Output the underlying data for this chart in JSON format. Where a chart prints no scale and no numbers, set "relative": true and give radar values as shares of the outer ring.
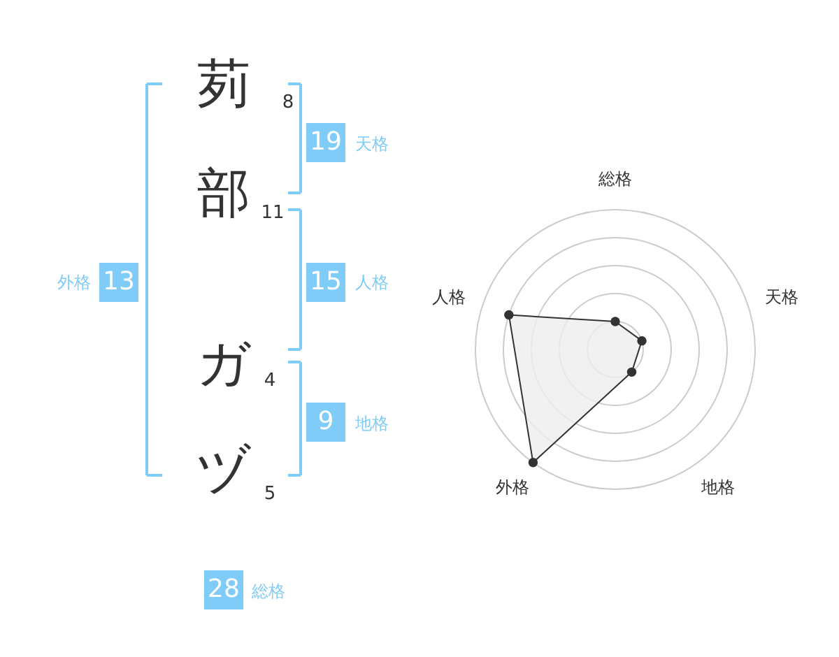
{
  "chart_data": [
    {
      "type": "other",
      "categories": [
        "茢",
        "部",
        "ガ",
        "ヅ"
      ],
      "color": "#7fccf9",
      "annotations": [
        "8",
        "11",
        "4",
        "5",
        "19",
        "天格",
        "15",
        "人格",
        "9",
        "地格",
        "13",
        "外格",
        "28",
        "総格"
      ]
    },
    {
      "type": "radar",
      "categories": [
        "総格",
        "天格",
        "地格",
        "外格",
        "人格"
      ],
      "relative": true,
      "grid": true,
      "marker": "circle",
      "series": [
        {
          "color": "#333333",
          "values": [
            0.2,
            0.2,
            0.2,
            1,
            0.8
          ]
        }
      ]
    }
  ]
}
